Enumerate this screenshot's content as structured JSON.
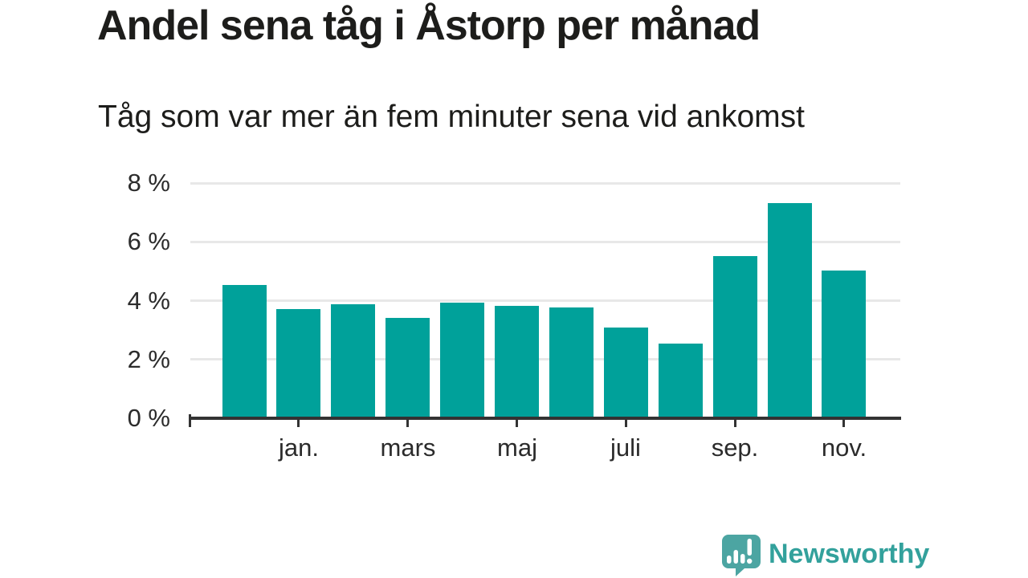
{
  "chart_data": {
    "type": "bar",
    "title": "Andel sena tåg i Åstorp per månad",
    "subtitle": "Tåg som var mer än fem minuter sena vid ankomst",
    "unit": "%",
    "categories": [
      "",
      "jan.",
      "",
      "mars",
      "",
      "maj",
      "",
      "juli",
      "",
      "sep.",
      "",
      "nov."
    ],
    "values": [
      4.5,
      3.7,
      3.85,
      3.4,
      3.9,
      3.8,
      3.75,
      3.05,
      2.5,
      5.5,
      7.3,
      5.0
    ],
    "ylim": [
      0,
      8
    ],
    "y_tick_values": [
      0,
      2,
      4,
      6,
      8
    ],
    "y_tick_labels": [
      "0 %",
      "2 %",
      "4 %",
      "6 %",
      "8 %"
    ],
    "x_tick_labels": [
      "jan.",
      "mars",
      "maj",
      "juli",
      "sep.",
      "nov."
    ],
    "x_tick_bar_indices": [
      1,
      3,
      5,
      7,
      9,
      11
    ],
    "grid": true,
    "legend": "none",
    "bar_color": "#00a19a",
    "grid_color": "#e8e8e8",
    "axis_color": "#333333",
    "label_color": "#2b2b2b",
    "title_color": "#1d1d1b"
  },
  "footer": {
    "brand": "Newsworthy",
    "brand_color": "#33a19c",
    "logo_bubble_color": "#4ca5a2",
    "logo_glyph_color": "#ffffff"
  }
}
